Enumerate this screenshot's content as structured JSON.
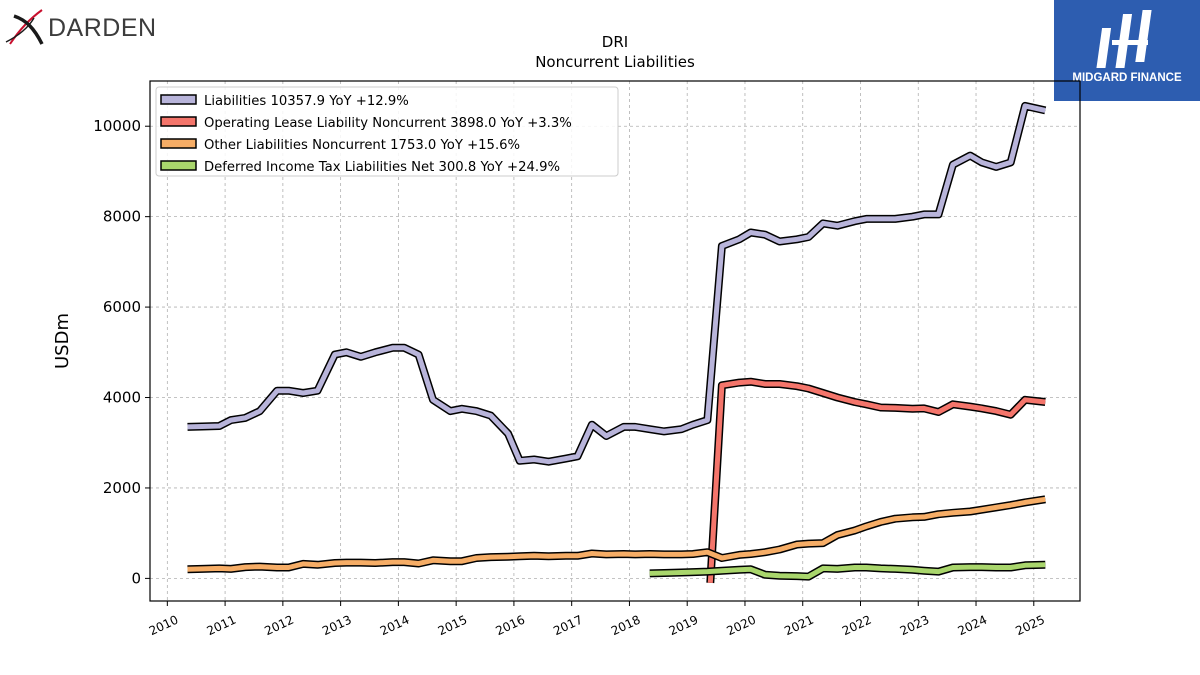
{
  "brand": {
    "left_logo_text": "DARDEN",
    "right_logo_text": "MIDGARD FINANCE"
  },
  "chart_data": {
    "type": "line",
    "title": "DRI",
    "subtitle": "Noncurrent  Liabilities",
    "xlabel": "",
    "ylabel": "USDm",
    "xlim": [
      2009.7,
      2025.8
    ],
    "ylim": [
      -500,
      11000
    ],
    "x_ticks": [
      "2010",
      "2011",
      "2012",
      "2013",
      "2014",
      "2015",
      "2016",
      "2017",
      "2018",
      "2019",
      "2020",
      "2021",
      "2022",
      "2023",
      "2024",
      "2025"
    ],
    "y_ticks": [
      0,
      2000,
      4000,
      6000,
      8000,
      10000
    ],
    "grid": true,
    "legend_position": "top-left",
    "series": [
      {
        "name": "Liabilities  10357.9 YoY +12.9%",
        "color": "#b8b4da",
        "points": [
          [
            2010.35,
            3350
          ],
          [
            2010.6,
            3360
          ],
          [
            2010.9,
            3370
          ],
          [
            2011.1,
            3500
          ],
          [
            2011.35,
            3550
          ],
          [
            2011.6,
            3700
          ],
          [
            2011.9,
            4150
          ],
          [
            2012.1,
            4150
          ],
          [
            2012.35,
            4100
          ],
          [
            2012.6,
            4150
          ],
          [
            2012.9,
            4950
          ],
          [
            2013.1,
            5000
          ],
          [
            2013.35,
            4900
          ],
          [
            2013.6,
            5000
          ],
          [
            2013.9,
            5100
          ],
          [
            2014.1,
            5100
          ],
          [
            2014.35,
            4950
          ],
          [
            2014.6,
            3950
          ],
          [
            2014.9,
            3700
          ],
          [
            2015.1,
            3750
          ],
          [
            2015.35,
            3700
          ],
          [
            2015.6,
            3600
          ],
          [
            2015.9,
            3200
          ],
          [
            2016.1,
            2600
          ],
          [
            2016.35,
            2630
          ],
          [
            2016.6,
            2580
          ],
          [
            2016.9,
            2650
          ],
          [
            2017.1,
            2700
          ],
          [
            2017.35,
            3400
          ],
          [
            2017.6,
            3150
          ],
          [
            2017.9,
            3350
          ],
          [
            2018.1,
            3350
          ],
          [
            2018.35,
            3300
          ],
          [
            2018.6,
            3250
          ],
          [
            2018.9,
            3300
          ],
          [
            2019.1,
            3400
          ],
          [
            2019.35,
            3500
          ],
          [
            2019.6,
            7350
          ],
          [
            2019.9,
            7500
          ],
          [
            2020.1,
            7650
          ],
          [
            2020.35,
            7600
          ],
          [
            2020.6,
            7450
          ],
          [
            2020.9,
            7500
          ],
          [
            2021.1,
            7550
          ],
          [
            2021.35,
            7850
          ],
          [
            2021.6,
            7800
          ],
          [
            2021.9,
            7900
          ],
          [
            2022.1,
            7950
          ],
          [
            2022.35,
            7950
          ],
          [
            2022.6,
            7950
          ],
          [
            2022.9,
            8000
          ],
          [
            2023.1,
            8050
          ],
          [
            2023.35,
            8050
          ],
          [
            2023.6,
            9150
          ],
          [
            2023.9,
            9350
          ],
          [
            2024.1,
            9200
          ],
          [
            2024.35,
            9100
          ],
          [
            2024.6,
            9200
          ],
          [
            2024.85,
            10450
          ],
          [
            2025.2,
            10350
          ]
        ]
      },
      {
        "name": "Operating Lease Liability Noncurrent  3898.0 YoY +3.3%",
        "color": "#f4756b",
        "points": [
          [
            2019.4,
            -100
          ],
          [
            2019.6,
            4270
          ],
          [
            2019.9,
            4330
          ],
          [
            2020.1,
            4350
          ],
          [
            2020.35,
            4300
          ],
          [
            2020.6,
            4300
          ],
          [
            2020.9,
            4250
          ],
          [
            2021.1,
            4200
          ],
          [
            2021.35,
            4100
          ],
          [
            2021.6,
            4000
          ],
          [
            2021.9,
            3900
          ],
          [
            2022.1,
            3850
          ],
          [
            2022.35,
            3780
          ],
          [
            2022.6,
            3770
          ],
          [
            2022.9,
            3750
          ],
          [
            2023.1,
            3760
          ],
          [
            2023.35,
            3680
          ],
          [
            2023.6,
            3850
          ],
          [
            2023.9,
            3800
          ],
          [
            2024.1,
            3760
          ],
          [
            2024.35,
            3700
          ],
          [
            2024.6,
            3620
          ],
          [
            2024.85,
            3950
          ],
          [
            2025.2,
            3900
          ]
        ]
      },
      {
        "name": "Other Liabilities Noncurrent  1753.0 YoY +15.6%",
        "color": "#f6ad66",
        "points": [
          [
            2010.35,
            200
          ],
          [
            2010.6,
            210
          ],
          [
            2010.9,
            220
          ],
          [
            2011.1,
            210
          ],
          [
            2011.35,
            250
          ],
          [
            2011.6,
            260
          ],
          [
            2011.9,
            240
          ],
          [
            2012.1,
            240
          ],
          [
            2012.35,
            320
          ],
          [
            2012.6,
            300
          ],
          [
            2012.9,
            340
          ],
          [
            2013.1,
            350
          ],
          [
            2013.35,
            350
          ],
          [
            2013.6,
            340
          ],
          [
            2013.9,
            360
          ],
          [
            2014.1,
            360
          ],
          [
            2014.35,
            330
          ],
          [
            2014.6,
            400
          ],
          [
            2014.9,
            380
          ],
          [
            2015.1,
            380
          ],
          [
            2015.35,
            450
          ],
          [
            2015.6,
            470
          ],
          [
            2015.9,
            480
          ],
          [
            2016.1,
            490
          ],
          [
            2016.35,
            500
          ],
          [
            2016.6,
            490
          ],
          [
            2016.9,
            500
          ],
          [
            2017.1,
            500
          ],
          [
            2017.35,
            550
          ],
          [
            2017.6,
            530
          ],
          [
            2017.9,
            540
          ],
          [
            2018.1,
            530
          ],
          [
            2018.35,
            540
          ],
          [
            2018.6,
            530
          ],
          [
            2018.9,
            530
          ],
          [
            2019.1,
            540
          ],
          [
            2019.35,
            580
          ],
          [
            2019.6,
            450
          ],
          [
            2019.9,
            520
          ],
          [
            2020.1,
            540
          ],
          [
            2020.35,
            580
          ],
          [
            2020.6,
            640
          ],
          [
            2020.9,
            750
          ],
          [
            2021.1,
            770
          ],
          [
            2021.35,
            780
          ],
          [
            2021.6,
            960
          ],
          [
            2021.9,
            1060
          ],
          [
            2022.1,
            1150
          ],
          [
            2022.35,
            1250
          ],
          [
            2022.6,
            1320
          ],
          [
            2022.9,
            1350
          ],
          [
            2023.1,
            1360
          ],
          [
            2023.35,
            1420
          ],
          [
            2023.6,
            1450
          ],
          [
            2023.9,
            1480
          ],
          [
            2024.1,
            1520
          ],
          [
            2024.35,
            1570
          ],
          [
            2024.6,
            1620
          ],
          [
            2024.85,
            1680
          ],
          [
            2025.2,
            1750
          ]
        ]
      },
      {
        "name": "Deferred Income Tax Liabilities Net  300.8 YoY +24.9%",
        "color": "#a9d66c",
        "points": [
          [
            2018.35,
            110
          ],
          [
            2018.6,
            120
          ],
          [
            2018.9,
            130
          ],
          [
            2019.1,
            140
          ],
          [
            2019.35,
            150
          ],
          [
            2019.6,
            170
          ],
          [
            2019.9,
            190
          ],
          [
            2020.1,
            200
          ],
          [
            2020.35,
            80
          ],
          [
            2020.6,
            60
          ],
          [
            2020.9,
            50
          ],
          [
            2021.1,
            40
          ],
          [
            2021.35,
            220
          ],
          [
            2021.6,
            210
          ],
          [
            2021.9,
            240
          ],
          [
            2022.1,
            240
          ],
          [
            2022.35,
            220
          ],
          [
            2022.6,
            210
          ],
          [
            2022.9,
            190
          ],
          [
            2023.1,
            170
          ],
          [
            2023.35,
            150
          ],
          [
            2023.6,
            240
          ],
          [
            2023.9,
            250
          ],
          [
            2024.1,
            250
          ],
          [
            2024.35,
            240
          ],
          [
            2024.6,
            240
          ],
          [
            2024.85,
            290
          ],
          [
            2025.2,
            300
          ]
        ]
      }
    ]
  }
}
